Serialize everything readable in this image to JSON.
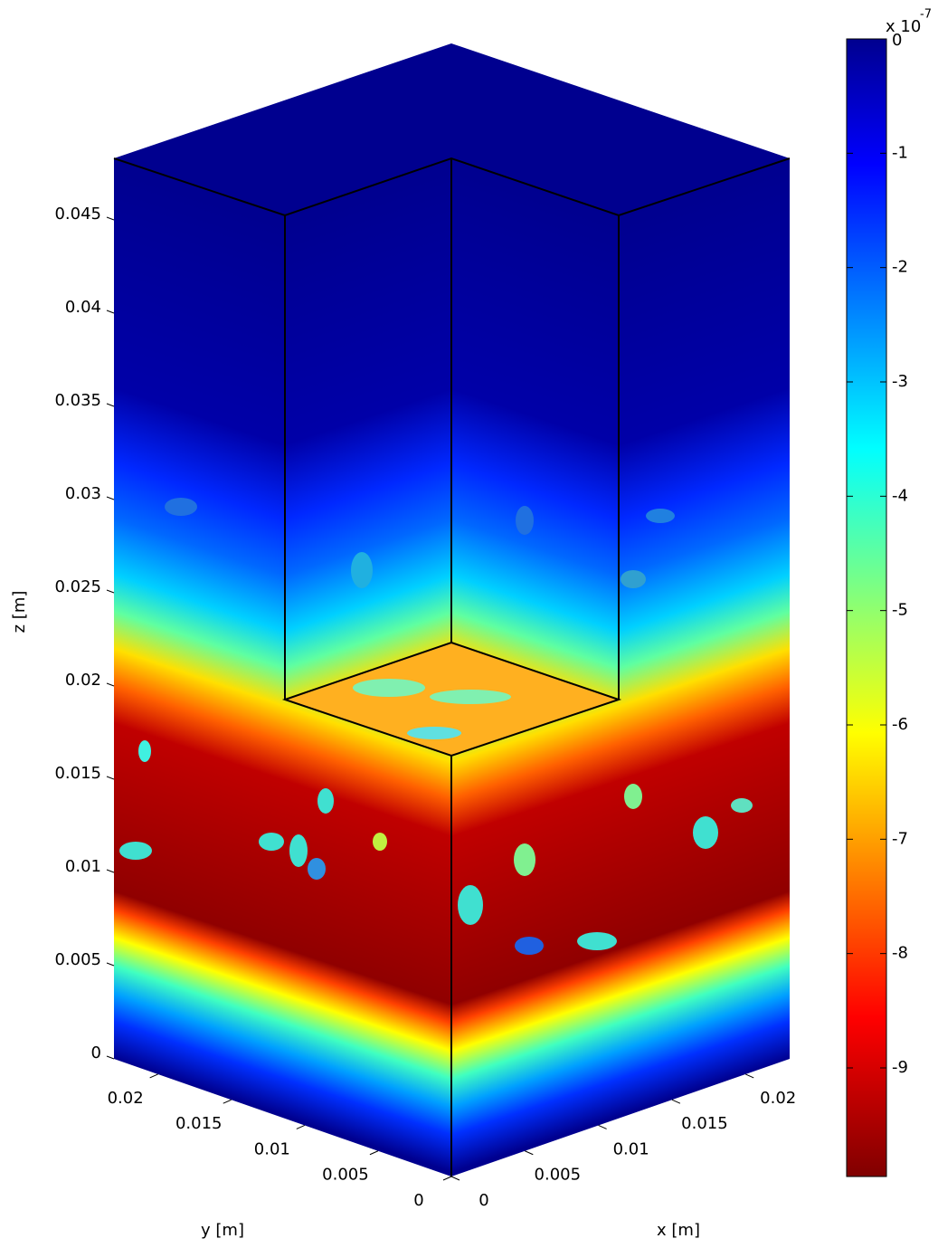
{
  "chart_data": {
    "type": "volume-slice",
    "xlabel": "x [m]",
    "ylabel": "y [m]",
    "zlabel": "z [m]",
    "xlim": [
      0,
      0.023
    ],
    "ylim": [
      0,
      0.023
    ],
    "zlim": [
      0,
      0.0483
    ],
    "xticks": [
      0,
      0.005,
      0.01,
      0.015,
      0.02
    ],
    "yticks": [
      0,
      0.005,
      0.01,
      0.015,
      0.02
    ],
    "zticks": [
      0,
      0.005,
      0.01,
      0.015,
      0.02,
      0.025,
      0.03,
      0.035,
      0.04,
      0.045
    ],
    "colormap": "jet",
    "colorbar": {
      "clim": [
        -9.95,
        0
      ],
      "ticks": [
        0,
        -1,
        -2,
        -3,
        -4,
        -5,
        -6,
        -7,
        -8,
        -9
      ],
      "multiplier": "x 10",
      "exponent": -7
    }
  }
}
